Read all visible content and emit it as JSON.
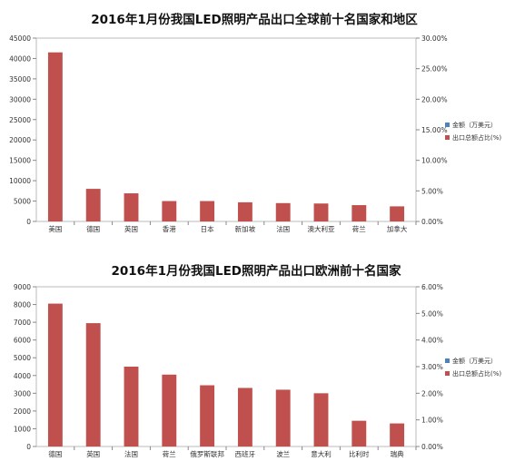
{
  "chart_data": [
    {
      "type": "bar",
      "title": "2016年1月份我国LED照明产品出口全球前十名国家和地区",
      "categories": [
        "美国",
        "德国",
        "英国",
        "香港",
        "日本",
        "新加坡",
        "法国",
        "澳大利亚",
        "荷兰",
        "加拿大"
      ],
      "series": [
        {
          "name": "金额（万美元）",
          "values": [
            41500,
            8000,
            6900,
            5000,
            5000,
            4700,
            4500,
            4400,
            4000,
            3700
          ]
        },
        {
          "name": "出口总额占比(%)",
          "values": [
            0,
            0,
            0,
            0,
            0,
            0,
            0,
            0,
            0,
            0
          ]
        }
      ],
      "y_ticks": [
        "0",
        "5000",
        "10000",
        "15000",
        "20000",
        "25000",
        "30000",
        "35000",
        "40000",
        "45000"
      ],
      "y2_ticks": [
        "0.00%",
        "5.00%",
        "10.00%",
        "15.00%",
        "20.00%",
        "25.00%",
        "30.00%"
      ],
      "ylim": [
        0,
        45000
      ],
      "y2lim": [
        0,
        30
      ],
      "legend_position": "right",
      "colors": {
        "bar": "#c0504d",
        "legend_amount": "#4f81bd",
        "legend_share": "#c0504d",
        "axis": "#888888"
      }
    },
    {
      "type": "bar",
      "title": "2016年1月份我国LED照明产品出口欧洲前十名国家",
      "categories": [
        "德国",
        "英国",
        "法国",
        "荷兰",
        "俄罗斯联邦",
        "西班牙",
        "波兰",
        "意大利",
        "比利时",
        "瑞典"
      ],
      "series": [
        {
          "name": "金额（万美元）",
          "values": [
            8050,
            6950,
            4500,
            4050,
            3450,
            3300,
            3200,
            3000,
            1450,
            1300
          ]
        },
        {
          "name": "出口总额占比(%)",
          "values": [
            0,
            0,
            0,
            0,
            0,
            0,
            0,
            0,
            0,
            0
          ]
        }
      ],
      "y_ticks": [
        "0",
        "1000",
        "2000",
        "3000",
        "4000",
        "5000",
        "6000",
        "7000",
        "8000",
        "9000"
      ],
      "y2_ticks": [
        "0.00%",
        "1.00%",
        "2.00%",
        "3.00%",
        "4.00%",
        "5.00%",
        "6.00%"
      ],
      "ylim": [
        0,
        9000
      ],
      "y2lim": [
        0,
        6
      ],
      "legend_position": "right",
      "colors": {
        "bar": "#c0504d",
        "legend_amount": "#4f81bd",
        "legend_share": "#c0504d",
        "axis": "#888888"
      }
    }
  ]
}
